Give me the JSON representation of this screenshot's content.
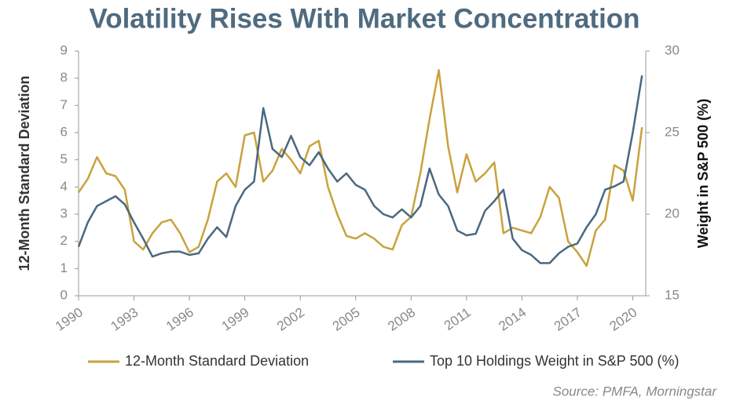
{
  "chart_data": {
    "type": "line",
    "title": "Volatility Rises With Market Concentration",
    "ylabel": "12-Month Standard Deviation",
    "y2label": "Weight in S&P 500 (%)",
    "source": "Source: PMFA, Morningstar",
    "x": [
      1990,
      1990.5,
      1991,
      1991.5,
      1992,
      1992.5,
      1993,
      1993.5,
      1994,
      1994.5,
      1995,
      1995.5,
      1996,
      1996.5,
      1997,
      1997.5,
      1998,
      1998.5,
      1999,
      1999.5,
      2000,
      2000.5,
      2001,
      2001.5,
      2002,
      2002.5,
      2003,
      2003.5,
      2004,
      2004.5,
      2005,
      2005.5,
      2006,
      2006.5,
      2007,
      2007.5,
      2008,
      2008.5,
      2009,
      2009.5,
      2010,
      2010.5,
      2011,
      2011.5,
      2012,
      2012.5,
      2013,
      2013.5,
      2014,
      2014.5,
      2015,
      2015.5,
      2016,
      2016.5,
      2017,
      2017.5,
      2018,
      2018.5,
      2019,
      2019.5,
      2020,
      2020.5
    ],
    "series": [
      {
        "name": "12-Month Standard Deviation",
        "color": "#c9a23c",
        "values": [
          3.8,
          4.3,
          5.1,
          4.5,
          4.4,
          3.9,
          2.0,
          1.7,
          2.3,
          2.7,
          2.8,
          2.3,
          1.6,
          1.8,
          2.8,
          4.2,
          4.5,
          4.0,
          5.9,
          6.0,
          4.2,
          4.6,
          5.4,
          5.0,
          4.5,
          5.5,
          5.7,
          4.0,
          3.0,
          2.2,
          2.1,
          2.3,
          2.1,
          1.8,
          1.7,
          2.6,
          2.9,
          4.5,
          6.5,
          8.3,
          5.5,
          3.8,
          5.2,
          4.2,
          4.5,
          4.9,
          2.3,
          2.5,
          2.4,
          2.3,
          2.9,
          4.0,
          3.6,
          2.0,
          1.6,
          1.1,
          2.4,
          2.8,
          4.8,
          4.6,
          3.5,
          6.2
        ]
      },
      {
        "name": "Top 10 Holdings Weight in S&P 500 (%)",
        "color": "#4a6880",
        "axis": "y2",
        "values": [
          18,
          19.5,
          20.5,
          20.8,
          21.1,
          20.6,
          19.5,
          18.5,
          17.4,
          17.6,
          17.7,
          17.7,
          17.5,
          17.6,
          18.5,
          19.2,
          18.6,
          20.5,
          21.5,
          22,
          26.5,
          24,
          23.5,
          24.8,
          23.5,
          23.0,
          23.8,
          22.8,
          22.0,
          22.5,
          21.8,
          21.5,
          20.5,
          20.0,
          19.8,
          20.3,
          19.8,
          20.5,
          22.8,
          21.2,
          20.5,
          19.0,
          18.7,
          18.8,
          20.2,
          20.8,
          21.5,
          18.5,
          17.8,
          17.5,
          17.0,
          17.0,
          17.6,
          18.0,
          18.2,
          19.2,
          20.0,
          21.5,
          21.7,
          22.0,
          25.0,
          28.5
        ]
      }
    ],
    "xlim": [
      1990,
      2020.7
    ],
    "xticks": [
      1990,
      1993,
      1996,
      1999,
      2002,
      2005,
      2008,
      2011,
      2014,
      2017,
      2020
    ],
    "ylim": [
      0,
      9
    ],
    "yticks": [
      0,
      1,
      2,
      3,
      4,
      5,
      6,
      7,
      8,
      9
    ],
    "y2lim": [
      15,
      30
    ],
    "y2ticks": [
      15,
      20,
      25,
      30
    ],
    "legend": "bottom"
  }
}
